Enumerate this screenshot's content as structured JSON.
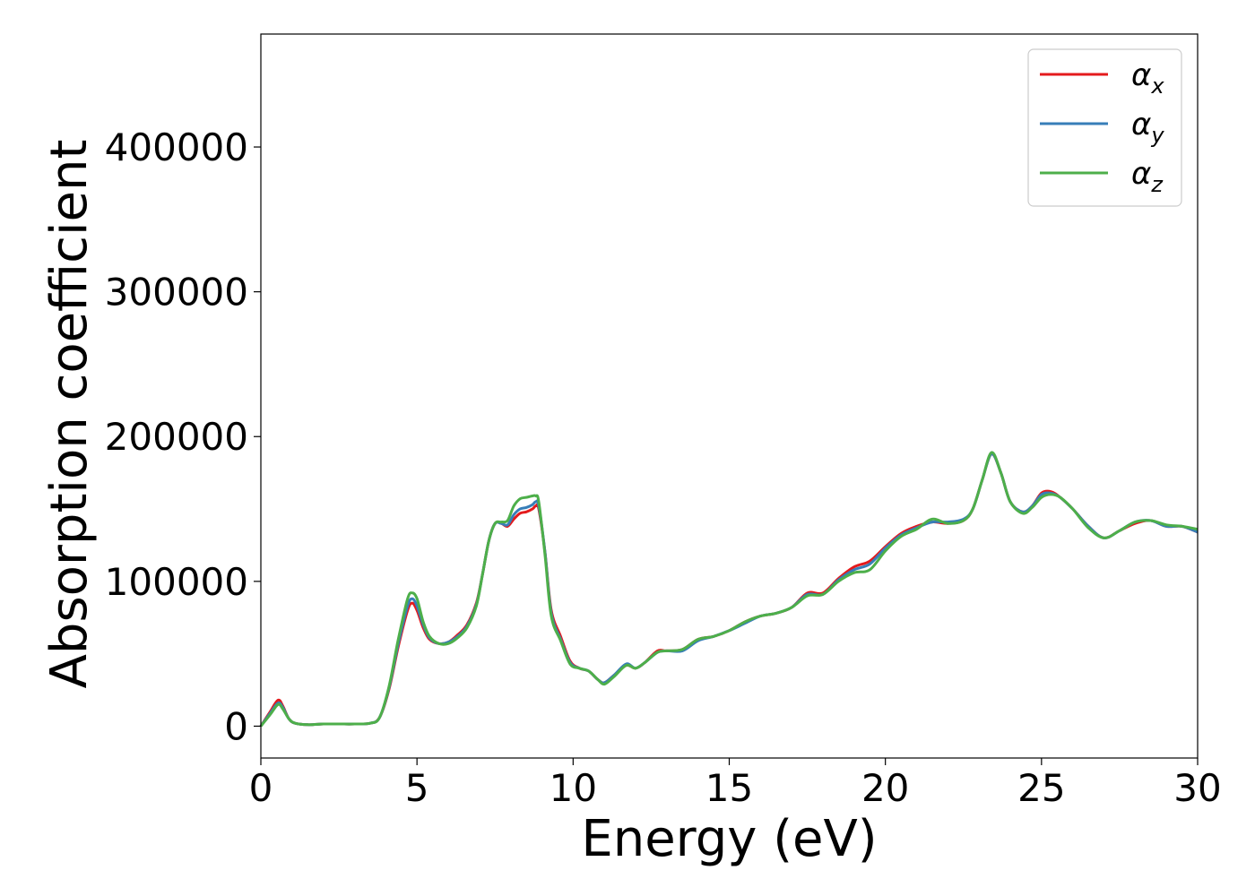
{
  "chart_data": {
    "type": "line",
    "title": "",
    "xlabel": "Energy (eV)",
    "ylabel": "Absorption coefficient",
    "xlim": [
      0,
      30
    ],
    "ylim": [
      -22000,
      478000
    ],
    "xticks": [
      0,
      5,
      10,
      15,
      20,
      25,
      30
    ],
    "yticks": [
      0,
      100000,
      200000,
      300000,
      400000
    ],
    "grid": false,
    "legend_position": "top-right",
    "series": [
      {
        "name": "α_x",
        "legend_base": "α",
        "legend_sub": "x",
        "color": "#e41a1c",
        "x": [
          0,
          0.3,
          0.55,
          0.7,
          0.9,
          1.1,
          1.5,
          2,
          2.5,
          3,
          3.5,
          3.8,
          4.1,
          4.4,
          4.7,
          4.85,
          5,
          5.2,
          5.4,
          5.7,
          6,
          6.3,
          6.6,
          6.9,
          7.1,
          7.3,
          7.5,
          7.7,
          7.9,
          8.1,
          8.3,
          8.5,
          8.7,
          8.8,
          8.9,
          9.1,
          9.3,
          9.6,
          9.9,
          10.2,
          10.5,
          10.8,
          11,
          11.3,
          11.7,
          12,
          12.3,
          12.7,
          13,
          13.5,
          14,
          14.5,
          15,
          15.5,
          16,
          16.5,
          17,
          17.5,
          18,
          18.5,
          19,
          19.5,
          20,
          20.5,
          21,
          21.5,
          22,
          22.5,
          22.8,
          23.1,
          23.4,
          23.7,
          24,
          24.4,
          24.7,
          25,
          25.3,
          25.6,
          26,
          26.5,
          27,
          27.5,
          28,
          28.5,
          29,
          29.5,
          30
        ],
        "y": [
          0,
          10000,
          18000,
          14000,
          5000,
          2000,
          1000,
          1500,
          1500,
          1500,
          2000,
          6000,
          25000,
          55000,
          80000,
          85000,
          80000,
          68000,
          60000,
          57000,
          58000,
          63000,
          70000,
          85000,
          105000,
          128000,
          140000,
          140000,
          138000,
          143000,
          147000,
          148000,
          150000,
          152000,
          150000,
          120000,
          80000,
          62000,
          45000,
          40000,
          38000,
          32000,
          30000,
          35000,
          42000,
          40000,
          44000,
          52000,
          52000,
          53000,
          60000,
          62000,
          66000,
          72000,
          76000,
          78000,
          82000,
          92000,
          92000,
          102000,
          110000,
          114000,
          124000,
          133000,
          138000,
          141000,
          140000,
          142000,
          150000,
          170000,
          188000,
          175000,
          155000,
          148000,
          152000,
          161000,
          162000,
          158000,
          150000,
          138000,
          130000,
          135000,
          140000,
          142000,
          138000,
          138000,
          134000
        ]
      },
      {
        "name": "α_y",
        "legend_base": "α",
        "legend_sub": "y",
        "color": "#377eb8",
        "x": [
          0,
          0.3,
          0.55,
          0.7,
          0.9,
          1.1,
          1.5,
          2,
          2.5,
          3,
          3.5,
          3.8,
          4.1,
          4.4,
          4.7,
          4.85,
          5,
          5.2,
          5.4,
          5.7,
          6,
          6.3,
          6.6,
          6.9,
          7.1,
          7.3,
          7.5,
          7.7,
          7.9,
          8.1,
          8.3,
          8.5,
          8.7,
          8.8,
          8.9,
          9.1,
          9.3,
          9.6,
          9.9,
          10.2,
          10.5,
          10.8,
          11,
          11.3,
          11.7,
          12,
          12.3,
          12.7,
          13,
          13.5,
          14,
          14.5,
          15,
          15.5,
          16,
          16.5,
          17,
          17.5,
          18,
          18.5,
          19,
          19.5,
          20,
          20.5,
          21,
          21.5,
          22,
          22.5,
          22.8,
          23.1,
          23.4,
          23.7,
          24,
          24.4,
          24.7,
          25,
          25.3,
          25.6,
          26,
          26.5,
          27,
          27.5,
          28,
          28.5,
          29,
          29.5,
          30
        ],
        "y": [
          0,
          9000,
          16000,
          13000,
          5000,
          2000,
          1000,
          1500,
          1500,
          1500,
          2000,
          6000,
          26000,
          57000,
          83000,
          88000,
          83000,
          70000,
          61000,
          57000,
          58000,
          62000,
          69000,
          84000,
          105000,
          128000,
          140000,
          140000,
          139000,
          146000,
          150000,
          151000,
          153000,
          155000,
          152000,
          120000,
          78000,
          60000,
          44000,
          40000,
          38000,
          32000,
          30000,
          35000,
          43000,
          40000,
          44000,
          51000,
          52000,
          52000,
          59000,
          62000,
          66000,
          71000,
          76000,
          78000,
          82000,
          91000,
          91000,
          101000,
          108000,
          112000,
          123000,
          132000,
          137000,
          141000,
          141000,
          143000,
          150000,
          170000,
          188000,
          175000,
          155000,
          148000,
          152000,
          160000,
          161000,
          158000,
          150000,
          138000,
          130000,
          135000,
          141000,
          142000,
          138000,
          138000,
          134000
        ]
      },
      {
        "name": "α_z",
        "legend_base": "α",
        "legend_sub": "z",
        "color": "#4daf4a",
        "x": [
          0,
          0.3,
          0.55,
          0.7,
          0.9,
          1.1,
          1.5,
          2,
          2.5,
          3,
          3.5,
          3.8,
          4.1,
          4.4,
          4.7,
          4.85,
          5,
          5.2,
          5.4,
          5.7,
          6,
          6.3,
          6.6,
          6.9,
          7.1,
          7.3,
          7.5,
          7.7,
          7.9,
          8.1,
          8.3,
          8.5,
          8.7,
          8.8,
          8.9,
          9.1,
          9.3,
          9.6,
          9.9,
          10.2,
          10.5,
          10.8,
          11,
          11.3,
          11.7,
          12,
          12.3,
          12.7,
          13,
          13.5,
          14,
          14.5,
          15,
          15.5,
          16,
          16.5,
          17,
          17.5,
          18,
          18.5,
          19,
          19.5,
          20,
          20.5,
          21,
          21.5,
          22,
          22.5,
          22.8,
          23.1,
          23.4,
          23.7,
          24,
          24.4,
          24.7,
          25,
          25.3,
          25.6,
          26,
          26.5,
          27,
          27.5,
          28,
          28.5,
          29,
          29.5,
          30
        ],
        "y": [
          0,
          8000,
          15000,
          12000,
          5000,
          2000,
          1000,
          1500,
          1500,
          1500,
          2000,
          6000,
          27000,
          60000,
          88000,
          92000,
          88000,
          72000,
          62000,
          57000,
          57000,
          61000,
          68000,
          83000,
          105000,
          128000,
          140000,
          141000,
          142000,
          152000,
          157000,
          158000,
          159000,
          159000,
          155000,
          118000,
          76000,
          59000,
          43000,
          40000,
          38000,
          32000,
          29000,
          34000,
          42000,
          40000,
          44000,
          51000,
          52000,
          53000,
          60000,
          62000,
          66000,
          72000,
          76000,
          78000,
          82000,
          90000,
          91000,
          100000,
          106000,
          108000,
          121000,
          131000,
          136000,
          143000,
          140000,
          142000,
          150000,
          170000,
          189000,
          175000,
          155000,
          147000,
          151000,
          158000,
          160000,
          158000,
          150000,
          137000,
          130000,
          135000,
          141000,
          142000,
          139000,
          138000,
          136000
        ]
      }
    ]
  }
}
